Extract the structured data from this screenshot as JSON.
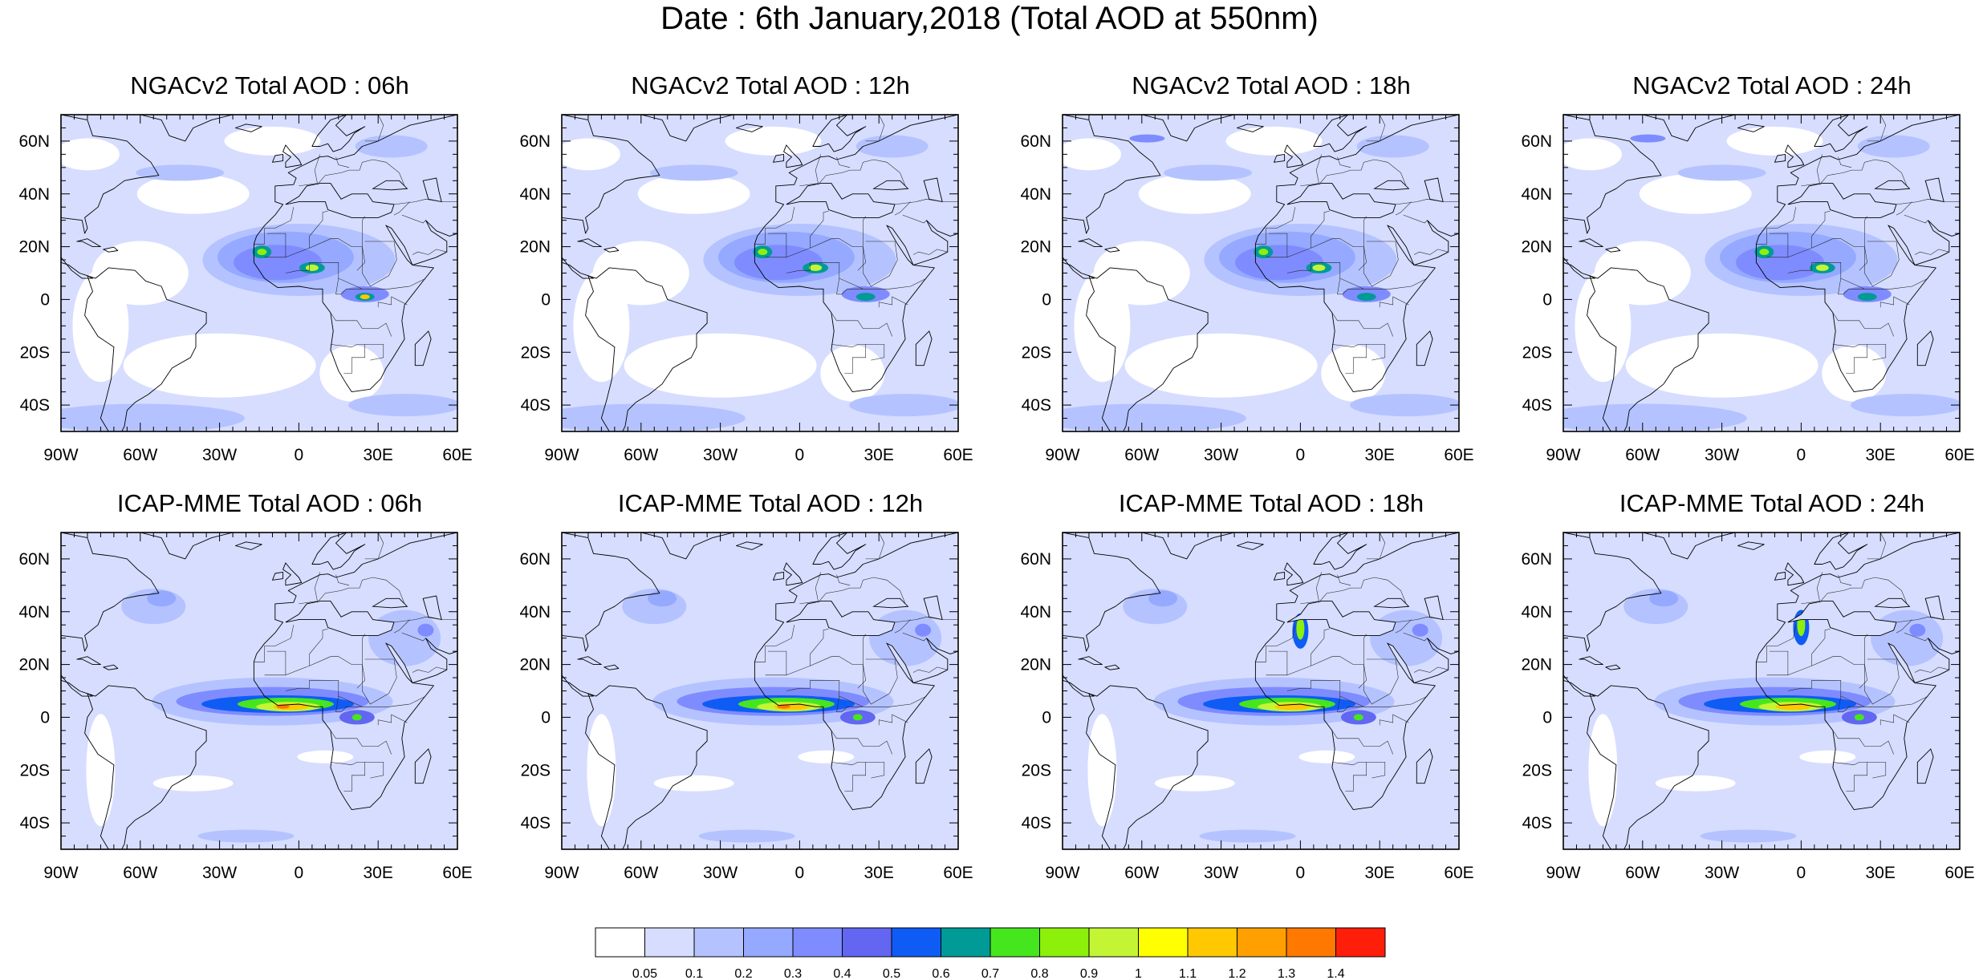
{
  "figure": {
    "title": "Date : 6th January,2018 (Total AOD at 550nm)"
  },
  "axes": {
    "lon_ticks": [
      "90W",
      "60W",
      "30W",
      "0",
      "30E",
      "60E"
    ],
    "lat_ticks": [
      "60N",
      "40N",
      "20N",
      "0",
      "20S",
      "40S"
    ],
    "lon_range": [
      -90,
      60
    ],
    "lat_range": [
      -50,
      70
    ]
  },
  "panels": [
    {
      "id": "ngac-06",
      "title": "NGACv2 Total AOD : 06h",
      "model": "ngac",
      "hour": 6
    },
    {
      "id": "ngac-12",
      "title": "NGACv2 Total AOD : 12h",
      "model": "ngac",
      "hour": 12
    },
    {
      "id": "ngac-18",
      "title": "NGACv2 Total AOD : 18h",
      "model": "ngac",
      "hour": 18
    },
    {
      "id": "ngac-24",
      "title": "NGACv2 Total AOD : 24h",
      "model": "ngac",
      "hour": 24
    },
    {
      "id": "icap-06",
      "title": "ICAP-MME Total AOD : 06h",
      "model": "icap",
      "hour": 6
    },
    {
      "id": "icap-12",
      "title": "ICAP-MME Total AOD : 12h",
      "model": "icap",
      "hour": 12
    },
    {
      "id": "icap-18",
      "title": "ICAP-MME Total AOD : 18h",
      "model": "icap",
      "hour": 18
    },
    {
      "id": "icap-24",
      "title": "ICAP-MME Total AOD : 24h",
      "model": "icap",
      "hour": 24
    }
  ],
  "colorbar": {
    "labels": [
      "0.05",
      "0.1",
      "0.2",
      "0.3",
      "0.4",
      "0.5",
      "0.6",
      "0.7",
      "0.8",
      "0.9",
      "1",
      "1.1",
      "1.2",
      "1.3",
      "1.4"
    ],
    "colors": [
      "#ffffff",
      "#d6ddff",
      "#b4c3ff",
      "#94a9ff",
      "#7f8cff",
      "#6266f0",
      "#0f5cf5",
      "#009b96",
      "#46e61e",
      "#8cf00a",
      "#c3f535",
      "#ffff00",
      "#ffc800",
      "#ffa000",
      "#ff7800",
      "#ff1e0a"
    ]
  }
}
